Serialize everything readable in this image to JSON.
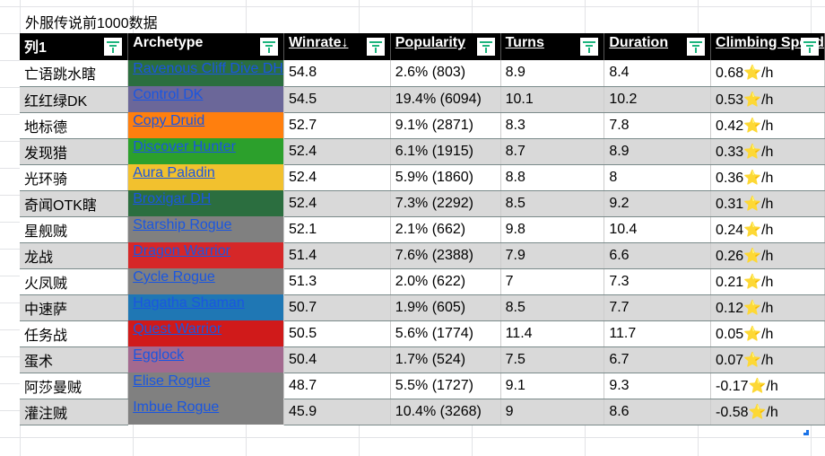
{
  "title": "外服传说前1000数据",
  "headers": [
    "列1",
    "Archetype",
    "Winrate↓",
    "Popularity",
    "Turns",
    "Duration",
    "Climbing Speed"
  ],
  "rows": [
    {
      "name": "亡语跳水瞎",
      "arch": "Ravenous Cliff Dive DH",
      "color": "#2b6e3f",
      "win": "54.8",
      "pop": "2.6% (803)",
      "turns": "8.9",
      "dur": "8.4",
      "climb": "0.68"
    },
    {
      "name": "红红绿DK",
      "arch": "Control DK",
      "color": "#6b6799",
      "win": "54.5",
      "pop": "19.4% (6094)",
      "turns": "10.1",
      "dur": "10.2",
      "climb": "0.53"
    },
    {
      "name": "地标德",
      "arch": "Copy Druid",
      "color": "#ff7f0e",
      "win": "52.7",
      "pop": "9.1% (2871)",
      "turns": "8.3",
      "dur": "7.8",
      "climb": "0.42"
    },
    {
      "name": "发现猎",
      "arch": "Discover Hunter",
      "color": "#2ca02c",
      "win": "52.4",
      "pop": "6.1% (1915)",
      "turns": "8.7",
      "dur": "8.9",
      "climb": "0.33"
    },
    {
      "name": "光环骑",
      "arch": "Aura Paladin",
      "color": "#f2c12e",
      "win": "52.4",
      "pop": "5.9% (1860)",
      "turns": "8.8",
      "dur": "8",
      "climb": "0.36"
    },
    {
      "name": "奇闻OTK瞎",
      "arch": "Broxigar DH",
      "color": "#2b6e3f",
      "win": "52.4",
      "pop": "7.3% (2292)",
      "turns": "8.5",
      "dur": "9.2",
      "climb": "0.31"
    },
    {
      "name": "星舰贼",
      "arch": "Starship Rogue",
      "color": "#808080",
      "win": "52.1",
      "pop": "2.1% (662)",
      "turns": "9.8",
      "dur": "10.4",
      "climb": "0.24"
    },
    {
      "name": "龙战",
      "arch": "Dragon Warrior",
      "color": "#d62728",
      "win": "51.4",
      "pop": "7.6% (2388)",
      "turns": "7.9",
      "dur": "6.6",
      "climb": "0.26"
    },
    {
      "name": "火凤贼",
      "arch": "Cycle Rogue",
      "color": "#808080",
      "win": "51.3",
      "pop": "2.0% (622)",
      "turns": "7",
      "dur": "7.3",
      "climb": "0.21"
    },
    {
      "name": "中速萨",
      "arch": "Hagatha Shaman",
      "color": "#1f77b4",
      "win": "50.7",
      "pop": "1.9% (605)",
      "turns": "8.5",
      "dur": "7.7",
      "climb": "0.12"
    },
    {
      "name": "任务战",
      "arch": "Quest Warrior",
      "color": "#d01a1a",
      "win": "50.5",
      "pop": "5.6% (1774)",
      "turns": "11.4",
      "dur": "11.7",
      "climb": "0.05"
    },
    {
      "name": "蛋术",
      "arch": "Egglock",
      "color": "#a3698f",
      "win": "50.4",
      "pop": "1.7% (524)",
      "turns": "7.5",
      "dur": "6.7",
      "climb": "0.07"
    },
    {
      "name": "阿莎曼贼",
      "arch": "Elise Rogue",
      "color": "#808080",
      "win": "48.7",
      "pop": "5.5% (1727)",
      "turns": "9.1",
      "dur": "9.3",
      "climb": "-0.17"
    },
    {
      "name": "灌注贼",
      "arch": "Imbue Rogue",
      "color": "#808080",
      "win": "45.9",
      "pop": "10.4% (3268)",
      "turns": "9",
      "dur": "8.6",
      "climb": "-0.58"
    }
  ],
  "climb_unit": "/h",
  "star": "⭐"
}
